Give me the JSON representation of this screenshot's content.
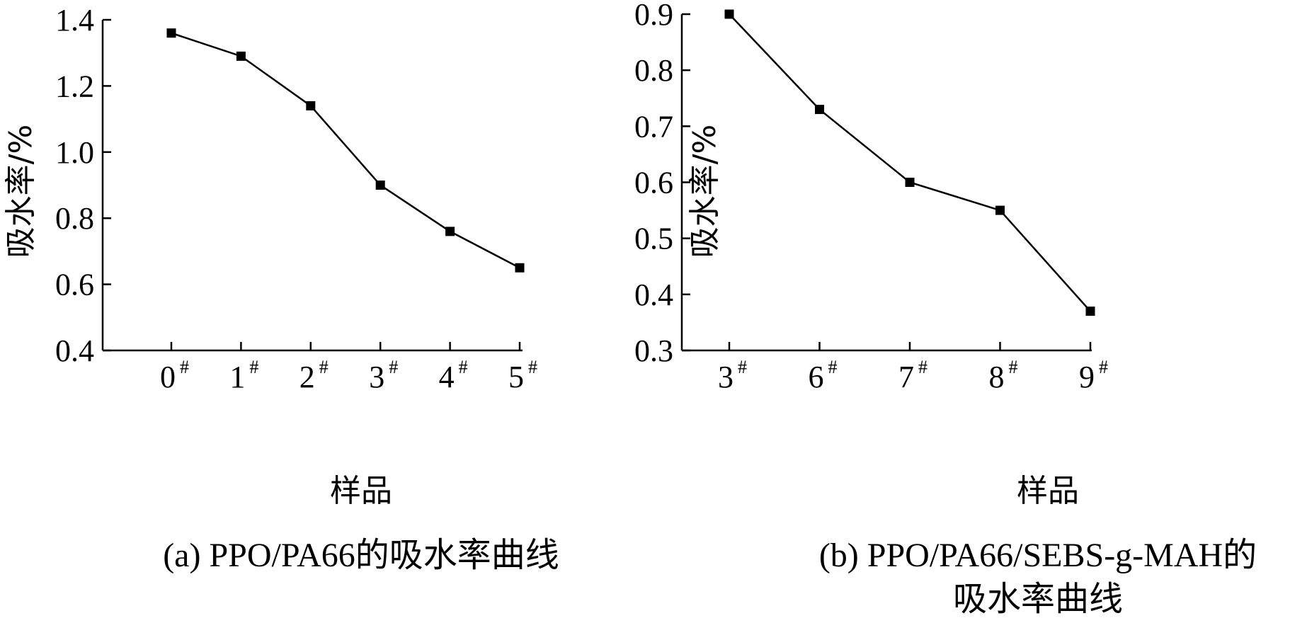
{
  "chart_data": [
    {
      "type": "line",
      "caption": "(a) PPO/PA66的吸水率曲线",
      "xlabel": "样品",
      "ylabel": "吸水率/%",
      "categories": [
        "0",
        "1",
        "2",
        "3",
        "4",
        "5"
      ],
      "category_suffix": "#",
      "values": [
        1.36,
        1.29,
        1.14,
        0.9,
        0.76,
        0.65
      ],
      "ylim": [
        0.4,
        1.4
      ],
      "yticks": [
        "0.4",
        "0.6",
        "0.8",
        "1.0",
        "1.2",
        "1.4"
      ],
      "marker": "square",
      "line_color": "#000000",
      "grid": false
    },
    {
      "type": "line",
      "caption_lines": [
        "(b) PPO/PA66/SEBS-g-MAH的",
        "吸水率曲线"
      ],
      "xlabel": "样品",
      "ylabel": "吸水率/%",
      "categories": [
        "3",
        "6",
        "7",
        "8",
        "9"
      ],
      "category_suffix": "#",
      "values": [
        0.9,
        0.73,
        0.6,
        0.55,
        0.37
      ],
      "ylim": [
        0.3,
        0.9
      ],
      "yticks": [
        "0.3",
        "0.4",
        "0.5",
        "0.6",
        "0.7",
        "0.8",
        "0.9"
      ],
      "marker": "square",
      "line_color": "#000000",
      "grid": false
    }
  ]
}
